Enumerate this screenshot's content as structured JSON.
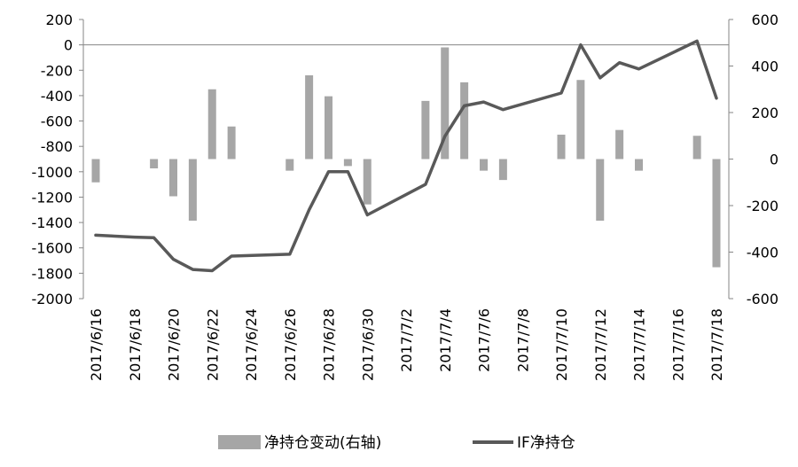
{
  "chart_data": {
    "type": "bar+line",
    "title": "",
    "x": [
      "2017/6/16",
      "2017/6/17",
      "2017/6/18",
      "2017/6/19",
      "2017/6/20",
      "2017/6/21",
      "2017/6/22",
      "2017/6/23",
      "2017/6/24",
      "2017/6/25",
      "2017/6/26",
      "2017/6/27",
      "2017/6/28",
      "2017/6/29",
      "2017/6/30",
      "2017/7/1",
      "2017/7/2",
      "2017/7/3",
      "2017/7/4",
      "2017/7/5",
      "2017/7/6",
      "2017/7/7",
      "2017/7/8",
      "2017/7/9",
      "2017/7/10",
      "2017/7/11",
      "2017/7/12",
      "2017/7/13",
      "2017/7/14",
      "2017/7/15",
      "2017/7/16",
      "2017/7/17",
      "2017/7/18"
    ],
    "x_tick_labels": [
      "2017/6/16",
      "2017/6/18",
      "2017/6/20",
      "2017/6/22",
      "2017/6/24",
      "2017/6/26",
      "2017/6/28",
      "2017/6/30",
      "2017/7/2",
      "2017/7/4",
      "2017/7/6",
      "2017/7/8",
      "2017/7/10",
      "2017/7/12",
      "2017/7/14",
      "2017/7/16",
      "2017/7/18"
    ],
    "left_axis": {
      "ylim": [
        -2000,
        200
      ],
      "ticks": [
        "200",
        "0",
        "-200",
        "-400",
        "-600",
        "-800",
        "-1000",
        "-1200",
        "-1400",
        "-1600",
        "-1800",
        "-2000"
      ]
    },
    "right_axis": {
      "ylim": [
        -600,
        600
      ],
      "ticks": [
        "600",
        "400",
        "200",
        "0",
        "-200",
        "-400",
        "-600"
      ]
    },
    "bar_series": {
      "name": "净持仓变动(右轴)",
      "axis": "right",
      "color": "#a6a6a6",
      "points": [
        {
          "x": "2017/6/16",
          "y": -100
        },
        {
          "x": "2017/6/19",
          "y": -40
        },
        {
          "x": "2017/6/20",
          "y": -160
        },
        {
          "x": "2017/6/21",
          "y": -265
        },
        {
          "x": "2017/6/22",
          "y": 300
        },
        {
          "x": "2017/6/23",
          "y": 140
        },
        {
          "x": "2017/6/26",
          "y": -50
        },
        {
          "x": "2017/6/27",
          "y": 360
        },
        {
          "x": "2017/6/28",
          "y": 270
        },
        {
          "x": "2017/6/29",
          "y": -30
        },
        {
          "x": "2017/6/30",
          "y": -195
        },
        {
          "x": "2017/7/3",
          "y": 250
        },
        {
          "x": "2017/7/4",
          "y": 480
        },
        {
          "x": "2017/7/5",
          "y": 330
        },
        {
          "x": "2017/7/6",
          "y": -50
        },
        {
          "x": "2017/7/7",
          "y": -90
        },
        {
          "x": "2017/7/10",
          "y": 105
        },
        {
          "x": "2017/7/11",
          "y": 340
        },
        {
          "x": "2017/7/12",
          "y": -265
        },
        {
          "x": "2017/7/13",
          "y": 125
        },
        {
          "x": "2017/7/14",
          "y": -50
        },
        {
          "x": "2017/7/17",
          "y": 100
        },
        {
          "x": "2017/7/18",
          "y": -465
        }
      ]
    },
    "line_series": {
      "name": "IF净持仓",
      "axis": "left",
      "color": "#595959",
      "points": [
        {
          "x": "2017/6/16",
          "y": -1500
        },
        {
          "x": "2017/6/18",
          "y": -1515
        },
        {
          "x": "2017/6/19",
          "y": -1520
        },
        {
          "x": "2017/6/20",
          "y": -1690
        },
        {
          "x": "2017/6/21",
          "y": -1770
        },
        {
          "x": "2017/6/22",
          "y": -1780
        },
        {
          "x": "2017/6/23",
          "y": -1665
        },
        {
          "x": "2017/6/26",
          "y": -1650
        },
        {
          "x": "2017/6/27",
          "y": -1300
        },
        {
          "x": "2017/6/28",
          "y": -1000
        },
        {
          "x": "2017/6/29",
          "y": -1000
        },
        {
          "x": "2017/6/30",
          "y": -1340
        },
        {
          "x": "2017/7/3",
          "y": -1100
        },
        {
          "x": "2017/7/4",
          "y": -720
        },
        {
          "x": "2017/7/5",
          "y": -480
        },
        {
          "x": "2017/7/6",
          "y": -450
        },
        {
          "x": "2017/7/7",
          "y": -510
        },
        {
          "x": "2017/7/10",
          "y": -380
        },
        {
          "x": "2017/7/11",
          "y": 0
        },
        {
          "x": "2017/7/12",
          "y": -260
        },
        {
          "x": "2017/7/13",
          "y": -140
        },
        {
          "x": "2017/7/14",
          "y": -190
        },
        {
          "x": "2017/7/17",
          "y": 30
        },
        {
          "x": "2017/7/18",
          "y": -420
        }
      ]
    },
    "legend": {
      "placement": "bottom",
      "entries": [
        "净持仓变动(右轴)",
        "IF净持仓"
      ]
    },
    "grid": false
  }
}
